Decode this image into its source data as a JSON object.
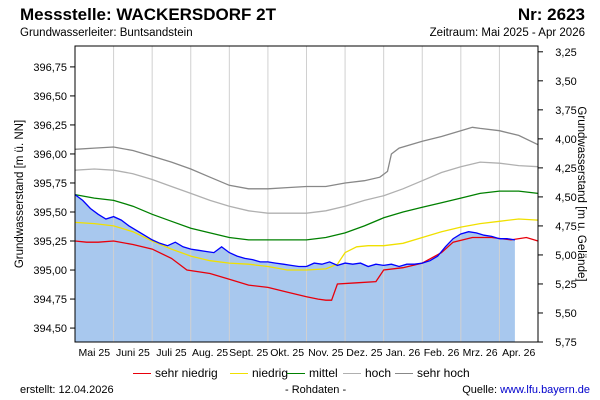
{
  "header": {
    "title": "Messstelle: WACKERSDORF 2T",
    "station_nr": "Nr: 2623",
    "aquifer": "Grundwasserleiter: Buntsandstein",
    "period": "Zeitraum: Mai 2025 - Apr 2026"
  },
  "footer": {
    "created_label": "erstellt:",
    "created_date": "12.04.2026",
    "note": "- Rohdaten -",
    "source_label": "Quelle:",
    "source_link": "www.lfu.bayern.de"
  },
  "colors": {
    "area_fill": "#a8c8ee",
    "measured_line": "#0000ff",
    "sehr_niedrig": "#e8000b",
    "niedrig": "#f0e000",
    "mittel": "#008000",
    "hoch": "#b0b0b0",
    "sehr_hoch": "#888888"
  },
  "chart_data": {
    "type": "line",
    "title": "Messstelle: WACKERSDORF 2T",
    "xlabel": "",
    "ylabel": "Grundwasserstand [m ü. NN]",
    "ylabel_right": "Grundwasserstand [m u. Gelände]",
    "ylim": [
      394.38,
      396.93
    ],
    "ylim_right": [
      3.2,
      5.75
    ],
    "yticks": [
      394.5,
      394.75,
      395.0,
      395.25,
      395.5,
      395.75,
      396.0,
      396.25,
      396.5,
      396.75
    ],
    "ytick_labels": [
      "394,50",
      "394,75",
      "395,00",
      "395,25",
      "395,50",
      "395,75",
      "396,00",
      "396,25",
      "396,50",
      "396,75"
    ],
    "yticks_right": [
      3.25,
      3.5,
      3.75,
      4.0,
      4.25,
      4.5,
      4.75,
      5.0,
      5.25,
      5.5,
      5.75
    ],
    "ytick_labels_right": [
      "3,25",
      "3,50",
      "3,75",
      "4,00",
      "4,25",
      "4,50",
      "4,75",
      "5,00",
      "5,25",
      "5,50",
      "5,75"
    ],
    "xlim": [
      0,
      12
    ],
    "x_months": [
      0.5,
      1.5,
      2.5,
      3.5,
      4.5,
      5.5,
      6.5,
      7.5,
      8.5,
      9.5,
      10.5,
      11.5
    ],
    "categories": [
      "Mai 25",
      "Juni 25",
      "Juli 25",
      "Aug. 25",
      "Sept. 25",
      "Okt. 25",
      "Nov. 25",
      "Dez. 25",
      "Jan. 26",
      "Feb. 26",
      "Mrz. 26",
      "Apr. 26"
    ],
    "legend": [
      "sehr niedrig",
      "niedrig",
      "mittel",
      "hoch",
      "sehr hoch"
    ],
    "legend_position": "bottom",
    "grid": "vertical",
    "series": [
      {
        "name": "sehr niedrig",
        "color": "#e8000b",
        "x": [
          0,
          0.3,
          0.6,
          1.0,
          1.5,
          2.0,
          2.5,
          2.9,
          3.5,
          4.0,
          4.5,
          5.0,
          5.5,
          6.0,
          6.3,
          6.5,
          6.65,
          6.8,
          7.3,
          7.8,
          8.0,
          8.5,
          9.0,
          9.5,
          9.8,
          10.3,
          10.8,
          11.3,
          11.7,
          12.0
        ],
        "y": [
          395.25,
          395.24,
          395.24,
          395.25,
          395.22,
          395.18,
          395.1,
          395.0,
          394.97,
          394.92,
          394.87,
          394.85,
          394.81,
          394.77,
          394.75,
          394.74,
          394.74,
          394.88,
          394.89,
          394.9,
          395.0,
          395.02,
          395.06,
          395.15,
          395.24,
          395.28,
          395.28,
          395.26,
          395.28,
          395.25
        ]
      },
      {
        "name": "niedrig",
        "color": "#f0e000",
        "x": [
          0,
          0.5,
          1.0,
          1.5,
          2.0,
          2.5,
          3.0,
          3.5,
          4.0,
          4.5,
          5.0,
          5.5,
          6.0,
          6.5,
          6.8,
          7.0,
          7.3,
          7.6,
          8.0,
          8.5,
          9.0,
          9.5,
          10.0,
          10.5,
          11.0,
          11.5,
          12.0
        ],
        "y": [
          395.41,
          395.4,
          395.38,
          395.33,
          395.25,
          395.18,
          395.12,
          395.08,
          395.06,
          395.05,
          395.03,
          395.0,
          395.0,
          395.01,
          395.05,
          395.15,
          395.2,
          395.21,
          395.21,
          395.23,
          395.28,
          395.33,
          395.37,
          395.4,
          395.42,
          395.44,
          395.43
        ]
      },
      {
        "name": "mittel",
        "color": "#008000",
        "x": [
          0,
          0.5,
          1.0,
          1.5,
          2.0,
          2.5,
          3.0,
          3.5,
          4.0,
          4.5,
          5.0,
          5.5,
          6.0,
          6.5,
          7.0,
          7.5,
          8.0,
          8.5,
          9.0,
          9.5,
          10.0,
          10.5,
          11.0,
          11.5,
          12.0
        ],
        "y": [
          395.65,
          395.62,
          395.6,
          395.55,
          395.48,
          395.42,
          395.36,
          395.32,
          395.28,
          395.26,
          395.26,
          395.26,
          395.26,
          395.28,
          395.32,
          395.38,
          395.45,
          395.5,
          395.54,
          395.58,
          395.62,
          395.66,
          395.68,
          395.68,
          395.66
        ]
      },
      {
        "name": "hoch",
        "color": "#b0b0b0",
        "x": [
          0,
          0.5,
          1.0,
          1.5,
          2.0,
          2.5,
          3.0,
          3.5,
          4.0,
          4.5,
          5.0,
          5.5,
          6.0,
          6.5,
          7.0,
          7.5,
          8.0,
          8.5,
          9.0,
          9.5,
          10.0,
          10.5,
          11.0,
          11.5,
          12.0
        ],
        "y": [
          395.86,
          395.87,
          395.86,
          395.83,
          395.78,
          395.72,
          395.66,
          395.6,
          395.55,
          395.51,
          395.49,
          395.49,
          395.49,
          395.51,
          395.55,
          395.6,
          395.64,
          395.7,
          395.77,
          395.84,
          395.89,
          395.93,
          395.92,
          395.9,
          395.89
        ]
      },
      {
        "name": "sehr hoch",
        "color": "#888888",
        "x": [
          0,
          0.5,
          1.0,
          1.5,
          2.0,
          2.5,
          3.0,
          3.5,
          4.0,
          4.5,
          5.0,
          5.5,
          6.0,
          6.5,
          7.0,
          7.5,
          7.9,
          8.1,
          8.2,
          8.4,
          9.0,
          9.5,
          10.0,
          10.3,
          10.5,
          11.0,
          11.5,
          12.0
        ],
        "y": [
          396.04,
          396.05,
          396.06,
          396.03,
          395.98,
          395.93,
          395.87,
          395.8,
          395.73,
          395.7,
          395.7,
          395.71,
          395.72,
          395.72,
          395.75,
          395.77,
          395.8,
          395.85,
          396.0,
          396.05,
          396.11,
          396.15,
          396.2,
          396.23,
          396.22,
          396.2,
          396.16,
          396.08
        ]
      },
      {
        "name": "Rohdaten",
        "color": "#0000ff",
        "x": [
          0,
          0.2,
          0.4,
          0.6,
          0.8,
          1.0,
          1.2,
          1.4,
          1.6,
          1.8,
          2.0,
          2.2,
          2.4,
          2.6,
          2.8,
          3.0,
          3.2,
          3.4,
          3.6,
          3.8,
          4.0,
          4.2,
          4.4,
          4.6,
          4.8,
          5.0,
          5.2,
          5.4,
          5.6,
          5.8,
          6.0,
          6.2,
          6.4,
          6.6,
          6.8,
          7.0,
          7.2,
          7.4,
          7.6,
          7.8,
          8.0,
          8.2,
          8.4,
          8.6,
          8.8,
          9.0,
          9.2,
          9.4,
          9.6,
          9.8,
          10.0,
          10.2,
          10.4,
          10.6,
          10.8,
          11.0,
          11.2,
          11.4
        ],
        "y": [
          395.65,
          395.6,
          395.53,
          395.48,
          395.44,
          395.46,
          395.43,
          395.38,
          395.34,
          395.3,
          395.26,
          395.23,
          395.21,
          395.24,
          395.2,
          395.18,
          395.17,
          395.16,
          395.15,
          395.2,
          395.15,
          395.12,
          395.1,
          395.09,
          395.07,
          395.07,
          395.06,
          395.05,
          395.04,
          395.03,
          395.03,
          395.06,
          395.05,
          395.07,
          395.04,
          395.06,
          395.05,
          395.06,
          395.03,
          395.05,
          395.04,
          395.05,
          395.03,
          395.05,
          395.05,
          395.06,
          395.08,
          395.12,
          395.2,
          395.27,
          395.31,
          395.33,
          395.32,
          395.3,
          395.29,
          395.27,
          395.27,
          395.26
        ]
      }
    ]
  }
}
